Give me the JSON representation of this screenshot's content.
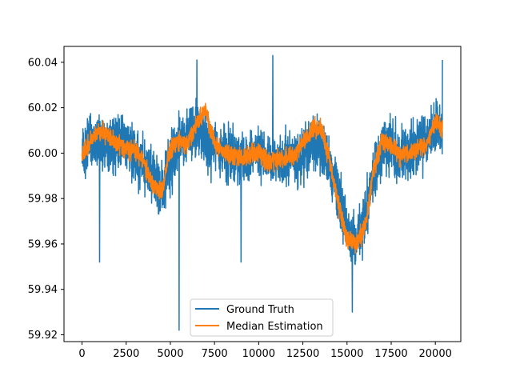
{
  "chart_data": {
    "type": "line",
    "title": "",
    "xlabel": "",
    "ylabel": "",
    "xlim": [
      -1020,
      21440
    ],
    "ylim": [
      59.917,
      60.047
    ],
    "xticks": [
      0,
      2500,
      5000,
      7500,
      10000,
      12500,
      15000,
      17500,
      20000
    ],
    "xtick_labels": [
      "0",
      "2500",
      "5000",
      "7500",
      "10000",
      "12500",
      "15000",
      "17500",
      "20000"
    ],
    "yticks": [
      59.92,
      59.94,
      59.96,
      59.98,
      60.0,
      60.02,
      60.04
    ],
    "ytick_labels": [
      "59.92",
      "59.94",
      "59.96",
      "59.98",
      "60.00",
      "60.02",
      "60.04"
    ],
    "legend_position": "lower center",
    "series": [
      {
        "name": "Ground Truth",
        "color": "#1f77b4",
        "style": "noisy",
        "x": [
          0,
          500,
          1000,
          1500,
          2000,
          2500,
          3000,
          3500,
          4000,
          4500,
          5000,
          5500,
          6000,
          6500,
          7000,
          7500,
          8000,
          8500,
          9000,
          9500,
          10000,
          10500,
          11000,
          11500,
          12000,
          12500,
          13000,
          13500,
          14000,
          14500,
          15000,
          15500,
          16000,
          16500,
          17000,
          17500,
          18000,
          18500,
          19000,
          19500,
          20000,
          20400
        ],
        "center": [
          60.0,
          60.006,
          60.005,
          60.003,
          60.004,
          60.003,
          59.999,
          59.995,
          59.99,
          59.985,
          59.995,
          60.004,
          60.008,
          60.01,
          60.006,
          60.002,
          60.0,
          59.999,
          59.997,
          59.998,
          60.0,
          59.996,
          59.997,
          59.998,
          59.997,
          60.0,
          60.005,
          60.004,
          59.995,
          59.982,
          59.968,
          59.96,
          59.97,
          59.99,
          60.002,
          60.003,
          59.999,
          60.0,
          60.003,
          60.006,
          60.012,
          60.012
        ],
        "spread": 0.018,
        "spikes": [
          {
            "x": 1000,
            "y": 59.952
          },
          {
            "x": 5500,
            "y": 59.922
          },
          {
            "x": 10800,
            "y": 60.043
          },
          {
            "x": 15300,
            "y": 59.93
          },
          {
            "x": 6500,
            "y": 60.041
          },
          {
            "x": 20400,
            "y": 60.041
          },
          {
            "x": 9000,
            "y": 59.952
          }
        ]
      },
      {
        "name": "Median Estimation",
        "color": "#ff7f0e",
        "style": "noisy",
        "x": [
          0,
          500,
          1000,
          1500,
          2000,
          2500,
          3000,
          3500,
          4000,
          4500,
          5000,
          5500,
          6000,
          6500,
          7000,
          7500,
          8000,
          8500,
          9000,
          9500,
          10000,
          10500,
          11000,
          11500,
          12000,
          12500,
          13000,
          13500,
          14000,
          14500,
          15000,
          15500,
          16000,
          16500,
          17000,
          17500,
          18000,
          18500,
          19000,
          19500,
          20000,
          20400
        ],
        "center": [
          59.999,
          60.005,
          60.01,
          60.008,
          60.004,
          60.002,
          60.001,
          59.996,
          59.986,
          59.983,
          60.002,
          60.005,
          60.004,
          60.014,
          60.018,
          60.004,
          60.0,
          59.999,
          59.998,
          59.999,
          60.001,
          59.996,
          59.997,
          59.998,
          59.998,
          60.005,
          60.01,
          60.012,
          59.997,
          59.978,
          59.962,
          59.96,
          59.967,
          59.992,
          60.006,
          60.003,
          59.999,
          60.0,
          60.003,
          60.003,
          60.014,
          60.011
        ],
        "spread": 0.006,
        "spikes": []
      }
    ]
  }
}
